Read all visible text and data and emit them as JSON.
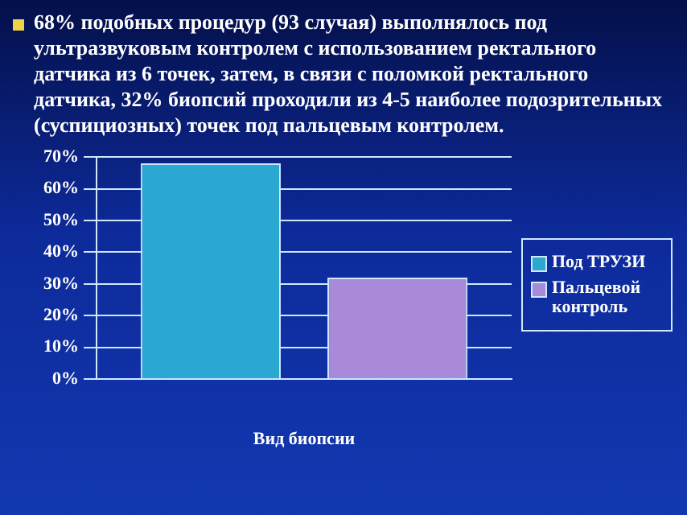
{
  "chart_data": {
    "type": "bar",
    "title": "68% подобных процедур (93 случая) выполнялось под ультразвуковым контролем с использованием ректального датчика из 6 точек, затем, в связи с поломкой ректального датчика, 32% биопсий проходили из 4-5 наиболее подозрительных (суспициозных) точек под пальцевым контролем.",
    "categories": [
      null
    ],
    "xlabel": "Вид биопсии",
    "series": [
      {
        "name": "Под ТРУЗИ",
        "color": "#2aa8d2",
        "values": [
          68
        ]
      },
      {
        "name": "Пальцевой контроль",
        "color": "#a98ad8",
        "values": [
          32
        ]
      }
    ],
    "ylim": [
      0,
      70
    ],
    "yticks": [
      {
        "value": 0,
        "label": "0%"
      },
      {
        "value": 10,
        "label": "10%"
      },
      {
        "value": 20,
        "label": "20%"
      },
      {
        "value": 30,
        "label": "30%"
      },
      {
        "value": 40,
        "label": "40%"
      },
      {
        "value": 50,
        "label": "50%"
      },
      {
        "value": 60,
        "label": "60%"
      },
      {
        "value": 70,
        "label": "70%"
      }
    ],
    "grid": "y",
    "legend": "right"
  }
}
